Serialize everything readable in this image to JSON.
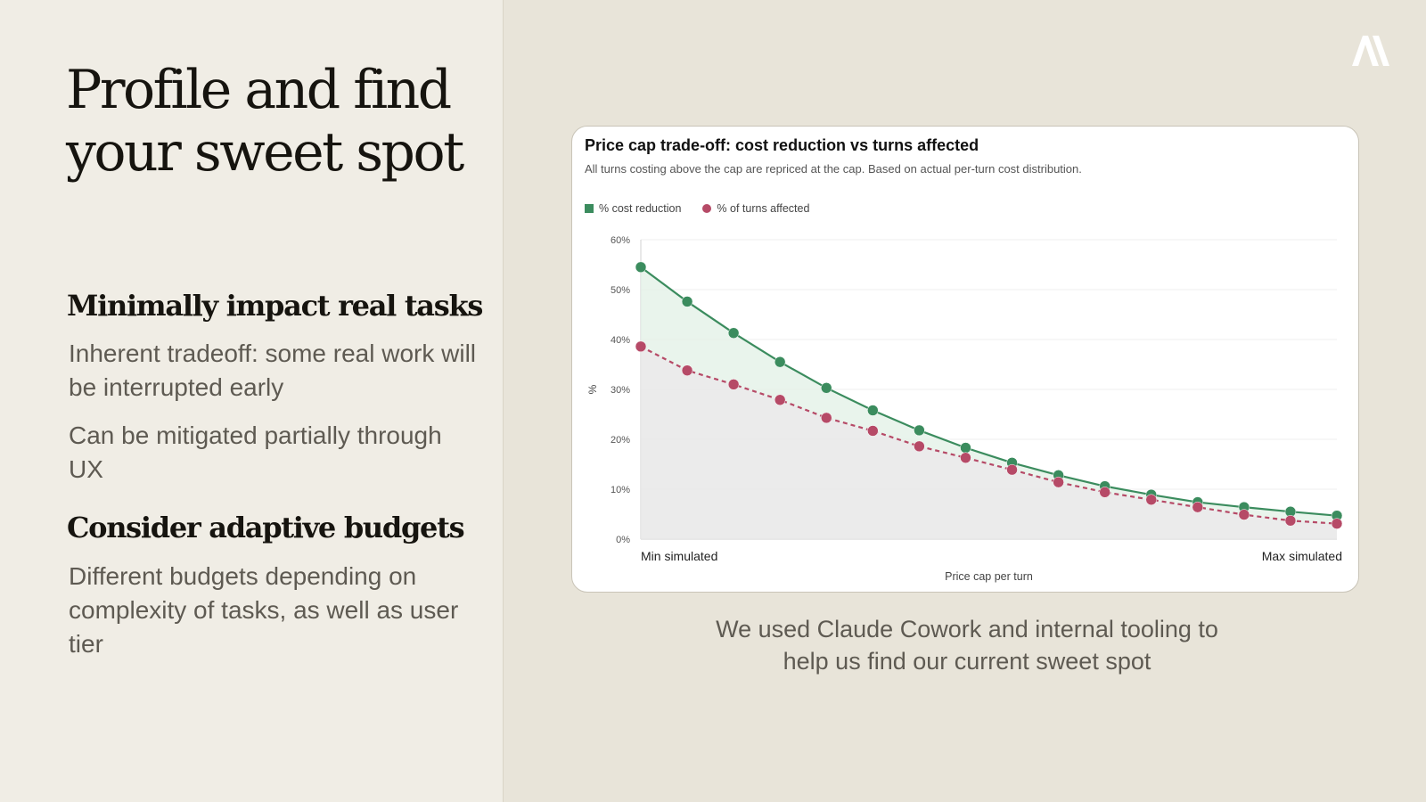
{
  "slide": {
    "title": "Profile and find your sweet spot",
    "sections": [
      {
        "heading": "Minimally impact real tasks",
        "points": [
          "Inherent tradeoff: some real work will be interrupted early",
          "Can be mitigated partially through UX"
        ]
      },
      {
        "heading": "Consider adaptive budgets",
        "points": [
          "Different budgets depending on complexity of tasks, as well as user tier"
        ]
      }
    ],
    "caption": "We used Claude Cowork and internal tooling to help us find our current sweet spot",
    "logo_icon": "anthropic-logo-icon"
  },
  "colors": {
    "cost_reduction": "#3b8c5e",
    "turns_affected": "#b64a67",
    "cost_fill": "#e3f1e7",
    "turns_fill": "#e8e8e8"
  },
  "chart_data": {
    "type": "line",
    "title": "Price cap trade-off: cost reduction vs turns affected",
    "subtitle": "All turns costing above the cap are repriced at the cap. Based on actual per-turn cost distribution.",
    "xlabel": "Price cap per turn",
    "ylabel": "%",
    "x_tick_labels": [
      "Min simulated",
      "Max simulated"
    ],
    "y_ticks": [
      "0%",
      "10%",
      "20%",
      "30%",
      "40%",
      "50%",
      "60%"
    ],
    "ylim": [
      0,
      60
    ],
    "grid": true,
    "legend_position": "top-left",
    "x": [
      1,
      2,
      3,
      4,
      5,
      6,
      7,
      8,
      9,
      10,
      11,
      12,
      13,
      14,
      15,
      16
    ],
    "series": [
      {
        "name": "% cost reduction",
        "style": "solid",
        "marker": "square-legend",
        "values": [
          54.5,
          47.6,
          41.3,
          35.5,
          30.3,
          25.8,
          21.8,
          18.3,
          15.3,
          12.8,
          10.6,
          8.9,
          7.4,
          6.4,
          5.5,
          4.7
        ]
      },
      {
        "name": "% of turns affected",
        "style": "dashed",
        "marker": "dot-legend",
        "values": [
          38.6,
          33.8,
          31.0,
          27.9,
          24.3,
          21.7,
          18.6,
          16.3,
          13.9,
          11.4,
          9.4,
          7.9,
          6.4,
          4.9,
          3.7,
          3.1
        ]
      }
    ]
  }
}
